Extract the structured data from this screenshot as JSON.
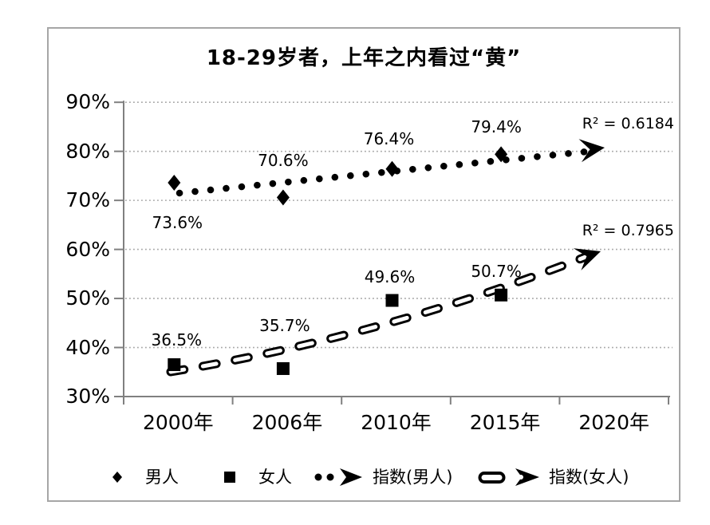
{
  "chart_data": {
    "type": "scatter",
    "title": "18-29岁者，上年之内看过“黄”",
    "x_categories": [
      "2000年",
      "2006年",
      "2010年",
      "2015年",
      "2020年"
    ],
    "y_ticks": [
      "90%",
      "80%",
      "70%",
      "60%",
      "50%",
      "40%",
      "30%"
    ],
    "y_tick_values": [
      90,
      80,
      70,
      60,
      50,
      40,
      30
    ],
    "ylim": [
      30,
      90
    ],
    "grid": "horizontal-dotted",
    "legend_position": "bottom",
    "series": [
      {
        "name": "男人",
        "marker": "diamond",
        "categories": [
          "2000年",
          "2006年",
          "2010年",
          "2015年"
        ],
        "values": [
          73.6,
          70.6,
          76.4,
          79.4
        ],
        "data_labels": [
          "73.6%",
          "70.6%",
          "76.4%",
          "79.4%"
        ]
      },
      {
        "name": "女人",
        "marker": "square",
        "categories": [
          "2000年",
          "2006年",
          "2010年",
          "2015年"
        ],
        "values": [
          36.5,
          35.7,
          49.6,
          50.7
        ],
        "data_labels": [
          "36.5%",
          "35.7%",
          "49.6%",
          "50.7%"
        ]
      }
    ],
    "trendlines": [
      {
        "name": "指数(男人)",
        "for_series": "男人",
        "style": "dotted-arrow",
        "r2_label": "R² = 0.6184",
        "start_value": 71.5,
        "end_value": 80.3
      },
      {
        "name": "指数(女人)",
        "for_series": "女人",
        "style": "dashed-arrow",
        "r2_label": "R² = 0.7965",
        "start_value": 35.0,
        "end_value": 58.8
      }
    ],
    "legend": [
      {
        "label": "男人",
        "icon": "diamond-marker-icon"
      },
      {
        "label": "女人",
        "icon": "square-marker-icon"
      },
      {
        "label": "指数(男人)",
        "icon": "dotted-trend-arrow-icon"
      },
      {
        "label": "指数(女人)",
        "icon": "dashed-trend-arrow-icon"
      }
    ]
  },
  "colors": {
    "marker": "#000000",
    "text": "#000000",
    "gridline": "#a6a6a6",
    "axis": "#808080",
    "border": "#a6a6a6",
    "background": "#ffffff"
  }
}
